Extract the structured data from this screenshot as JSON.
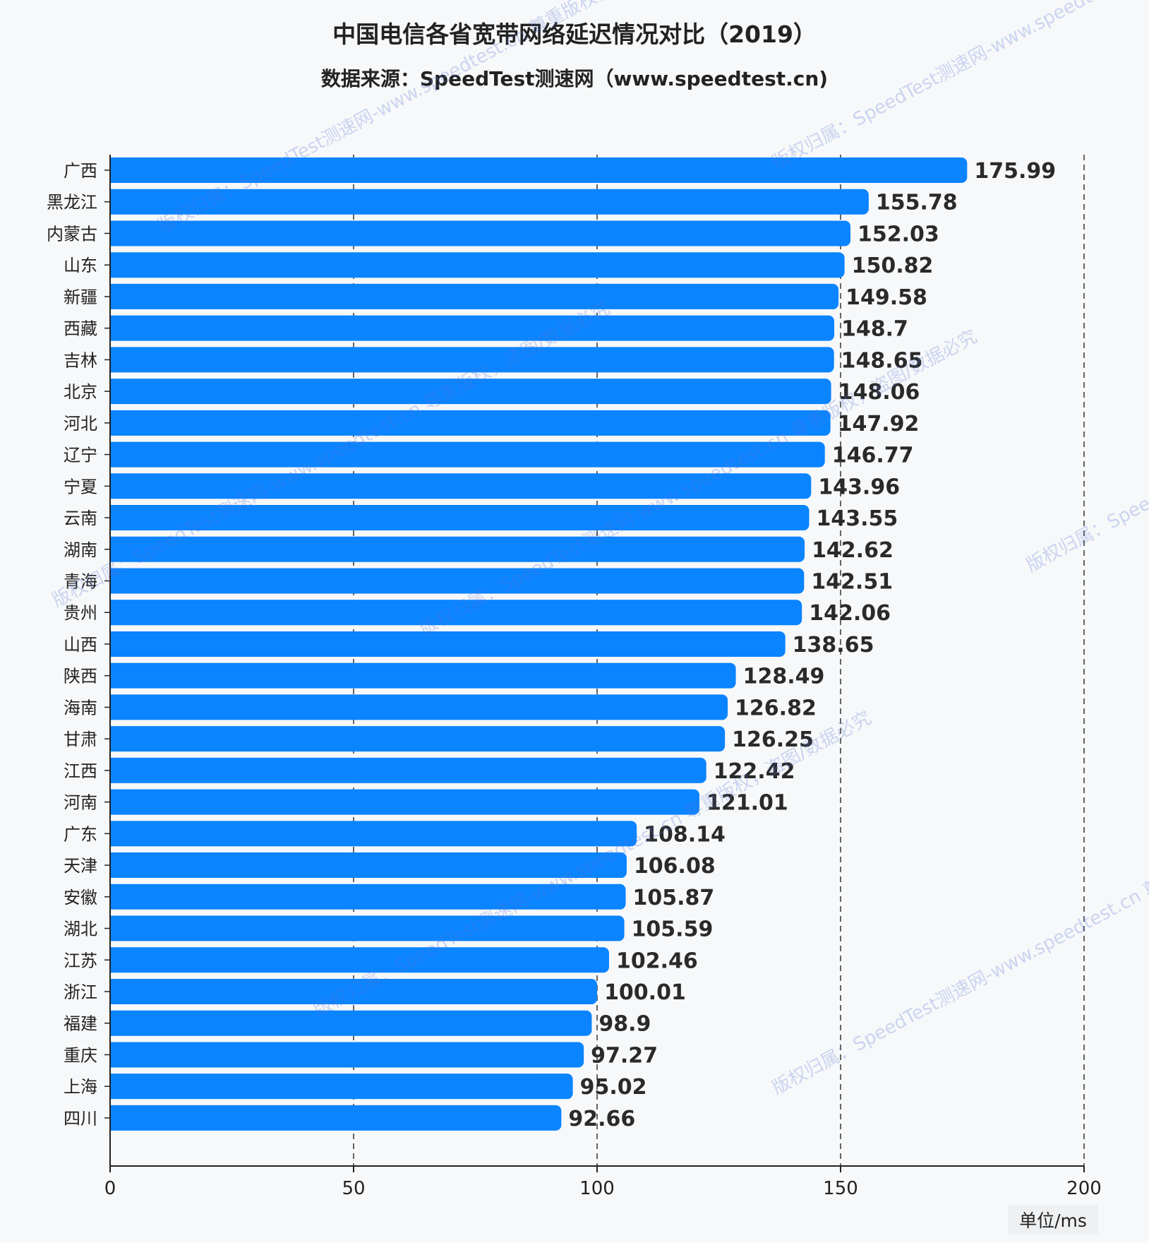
{
  "chart_data": {
    "type": "bar",
    "orientation": "horizontal",
    "title": "中国电信各省宽带网络延迟情况对比（2019）",
    "subtitle": "数据来源：SpeedTest测速网（www.speedtest.cn)",
    "unit_label": "单位/ms",
    "categories": [
      "广西",
      "黑龙江",
      "内蒙古",
      "山东",
      "新疆",
      "西藏",
      "吉林",
      "北京",
      "河北",
      "辽宁",
      "宁夏",
      "云南",
      "湖南",
      "青海",
      "贵州",
      "山西",
      "陕西",
      "海南",
      "甘肃",
      "江西",
      "河南",
      "广东",
      "天津",
      "安徽",
      "湖北",
      "江苏",
      "浙江",
      "福建",
      "重庆",
      "上海",
      "四川"
    ],
    "values": [
      175.99,
      155.78,
      152.03,
      150.82,
      149.58,
      148.7,
      148.65,
      148.06,
      147.92,
      146.77,
      143.96,
      143.55,
      142.62,
      142.51,
      142.06,
      138.65,
      128.49,
      126.82,
      126.25,
      122.42,
      121.01,
      108.14,
      106.08,
      105.87,
      105.59,
      102.46,
      100.01,
      98.9,
      97.27,
      95.02,
      92.66
    ],
    "xlim": [
      0,
      200
    ],
    "xticks": [
      0,
      50,
      100,
      150,
      200
    ],
    "grid": "vertical dashed",
    "bar_color": "#0a84ff",
    "watermark": "版权归属：SpeedTest测速网-www.speedtest.cn 尊重版权，盗图/数据必究"
  }
}
